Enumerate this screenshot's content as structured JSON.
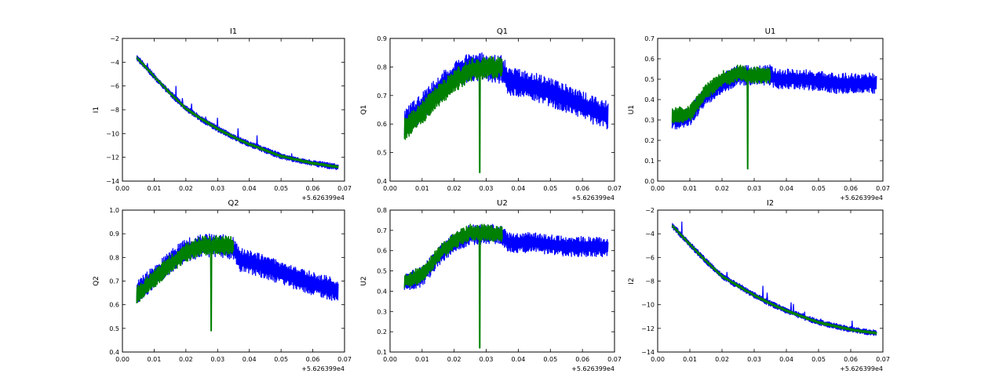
{
  "figure": {
    "background": "#ffffff",
    "series_colors": [
      "#0000ff",
      "#008000"
    ],
    "offset_label": "+5.626399e4"
  },
  "chart_data": [
    {
      "type": "line",
      "title": "I1",
      "ylabel": "I1",
      "xlabel": "",
      "xlim": [
        0.0,
        0.07
      ],
      "ylim": [
        -14,
        -2
      ],
      "xticks": [
        "0.00",
        "0.01",
        "0.02",
        "0.03",
        "0.04",
        "0.05",
        "0.06",
        "0.07"
      ],
      "yticks": [
        "−14",
        "−12",
        "−10",
        "−8",
        "−6",
        "−4",
        "−2"
      ],
      "series": [
        {
          "color": "#0000ff",
          "x": [
            0.0045,
            0.01,
            0.015,
            0.02,
            0.025,
            0.03,
            0.035,
            0.04,
            0.045,
            0.05,
            0.055,
            0.06,
            0.065,
            0.068
          ],
          "y": [
            -3.6,
            -5.2,
            -6.6,
            -7.9,
            -8.8,
            -9.6,
            -10.3,
            -10.9,
            -11.4,
            -11.9,
            -12.2,
            -12.5,
            -12.7,
            -12.8
          ],
          "noise": 0.25,
          "spikes": 1.2
        },
        {
          "color": "#008000",
          "x": [
            0.0045,
            0.01,
            0.015,
            0.02,
            0.025,
            0.03,
            0.035,
            0.04,
            0.045,
            0.05,
            0.055,
            0.06,
            0.065,
            0.068
          ],
          "y": [
            -3.6,
            -5.2,
            -6.6,
            -7.9,
            -8.8,
            -9.6,
            -10.3,
            -10.9,
            -11.4,
            -11.9,
            -12.2,
            -12.5,
            -12.7,
            -12.8
          ],
          "noise": 0.1,
          "spikes": 0
        }
      ]
    },
    {
      "type": "line",
      "title": "Q1",
      "ylabel": "Q1",
      "xlabel": "",
      "xlim": [
        0.0,
        0.07
      ],
      "ylim": [
        0.4,
        0.9
      ],
      "xticks": [
        "0.00",
        "0.01",
        "0.02",
        "0.03",
        "0.04",
        "0.05",
        "0.06",
        "0.07"
      ],
      "yticks": [
        "0.4",
        "0.5",
        "0.6",
        "0.7",
        "0.8",
        "0.9"
      ],
      "series": [
        {
          "color": "#0000ff",
          "x": [
            0.0045,
            0.01,
            0.015,
            0.02,
            0.025,
            0.03,
            0.035,
            0.037,
            0.045,
            0.055,
            0.065,
            0.068
          ],
          "y": [
            0.6,
            0.66,
            0.72,
            0.77,
            0.8,
            0.8,
            0.79,
            0.75,
            0.73,
            0.69,
            0.64,
            0.63
          ],
          "noise": 0.05,
          "spikes": 0
        },
        {
          "color": "#008000",
          "x": [
            0.0045,
            0.01,
            0.015,
            0.02,
            0.025,
            0.03,
            0.035
          ],
          "y": [
            0.58,
            0.64,
            0.7,
            0.75,
            0.79,
            0.8,
            0.8
          ],
          "noise": 0.04,
          "dip": {
            "x": 0.028,
            "y": 0.43
          }
        }
      ]
    },
    {
      "type": "line",
      "title": "U1",
      "ylabel": "U1",
      "xlabel": "",
      "xlim": [
        0.0,
        0.07
      ],
      "ylim": [
        0.0,
        0.7
      ],
      "xticks": [
        "0.00",
        "0.01",
        "0.02",
        "0.03",
        "0.04",
        "0.05",
        "0.06",
        "0.07"
      ],
      "yticks": [
        "0.0",
        "0.1",
        "0.2",
        "0.3",
        "0.4",
        "0.5",
        "0.6",
        "0.7"
      ],
      "series": [
        {
          "color": "#0000ff",
          "x": [
            0.0045,
            0.01,
            0.015,
            0.02,
            0.025,
            0.03,
            0.035,
            0.037,
            0.045,
            0.055,
            0.065,
            0.068
          ],
          "y": [
            0.3,
            0.32,
            0.42,
            0.48,
            0.52,
            0.52,
            0.52,
            0.5,
            0.5,
            0.48,
            0.48,
            0.48
          ],
          "noise": 0.05,
          "spikes": 0
        },
        {
          "color": "#008000",
          "x": [
            0.0045,
            0.01,
            0.015,
            0.02,
            0.025,
            0.03,
            0.035
          ],
          "y": [
            0.32,
            0.33,
            0.44,
            0.5,
            0.53,
            0.52,
            0.52
          ],
          "noise": 0.04,
          "dip": {
            "x": 0.028,
            "y": 0.06
          }
        }
      ]
    },
    {
      "type": "line",
      "title": "Q2",
      "ylabel": "Q2",
      "xlabel": "",
      "xlim": [
        0.0,
        0.07
      ],
      "ylim": [
        0.4,
        1.0
      ],
      "xticks": [
        "0.00",
        "0.01",
        "0.02",
        "0.03",
        "0.04",
        "0.05",
        "0.06",
        "0.07"
      ],
      "yticks": [
        "0.4",
        "0.5",
        "0.6",
        "0.7",
        "0.8",
        "0.9",
        "1.0"
      ],
      "series": [
        {
          "color": "#0000ff",
          "x": [
            0.0045,
            0.01,
            0.015,
            0.02,
            0.025,
            0.03,
            0.035,
            0.037,
            0.045,
            0.055,
            0.065,
            0.068
          ],
          "y": [
            0.65,
            0.72,
            0.78,
            0.83,
            0.85,
            0.85,
            0.84,
            0.79,
            0.76,
            0.71,
            0.67,
            0.66
          ],
          "noise": 0.05,
          "spikes": 0
        },
        {
          "color": "#008000",
          "x": [
            0.0045,
            0.01,
            0.015,
            0.02,
            0.025,
            0.03,
            0.035
          ],
          "y": [
            0.64,
            0.71,
            0.77,
            0.82,
            0.85,
            0.85,
            0.85
          ],
          "noise": 0.04,
          "dip": {
            "x": 0.028,
            "y": 0.49
          }
        }
      ]
    },
    {
      "type": "line",
      "title": "U2",
      "ylabel": "U2",
      "xlabel": "",
      "xlim": [
        0.0,
        0.07
      ],
      "ylim": [
        0.1,
        0.8
      ],
      "xticks": [
        "0.00",
        "0.01",
        "0.02",
        "0.03",
        "0.04",
        "0.05",
        "0.06",
        "0.07"
      ],
      "yticks": [
        "0.1",
        "0.2",
        "0.3",
        "0.4",
        "0.5",
        "0.6",
        "0.7",
        "0.8"
      ],
      "series": [
        {
          "color": "#0000ff",
          "x": [
            0.0045,
            0.01,
            0.015,
            0.02,
            0.025,
            0.03,
            0.035,
            0.037,
            0.045,
            0.055,
            0.065,
            0.068
          ],
          "y": [
            0.45,
            0.47,
            0.57,
            0.64,
            0.68,
            0.68,
            0.68,
            0.64,
            0.64,
            0.62,
            0.62,
            0.62
          ],
          "noise": 0.05,
          "spikes": 0
        },
        {
          "color": "#008000",
          "x": [
            0.0045,
            0.01,
            0.015,
            0.02,
            0.025,
            0.03,
            0.035
          ],
          "y": [
            0.45,
            0.48,
            0.58,
            0.65,
            0.69,
            0.69,
            0.68
          ],
          "noise": 0.04,
          "dip": {
            "x": 0.028,
            "y": 0.12
          }
        }
      ]
    },
    {
      "type": "line",
      "title": "I2",
      "ylabel": "I2",
      "xlabel": "",
      "xlim": [
        0.0,
        0.07
      ],
      "ylim": [
        -14,
        -2
      ],
      "xticks": [
        "0.00",
        "0.01",
        "0.02",
        "0.03",
        "0.04",
        "0.05",
        "0.06",
        "0.07"
      ],
      "yticks": [
        "−14",
        "−12",
        "−10",
        "−8",
        "−6",
        "−4",
        "−2"
      ],
      "series": [
        {
          "color": "#0000ff",
          "x": [
            0.0045,
            0.01,
            0.015,
            0.02,
            0.025,
            0.03,
            0.035,
            0.04,
            0.045,
            0.05,
            0.055,
            0.06,
            0.065,
            0.068
          ],
          "y": [
            -3.3,
            -4.9,
            -6.3,
            -7.6,
            -8.4,
            -9.2,
            -9.9,
            -10.5,
            -11.0,
            -11.5,
            -11.8,
            -12.1,
            -12.3,
            -12.4
          ],
          "noise": 0.25,
          "spikes": 1.2
        },
        {
          "color": "#008000",
          "x": [
            0.0045,
            0.01,
            0.015,
            0.02,
            0.025,
            0.03,
            0.035,
            0.04,
            0.045,
            0.05,
            0.055,
            0.06,
            0.065,
            0.068
          ],
          "y": [
            -3.3,
            -4.9,
            -6.3,
            -7.6,
            -8.4,
            -9.2,
            -9.9,
            -10.5,
            -11.0,
            -11.5,
            -11.8,
            -12.1,
            -12.3,
            -12.4
          ],
          "noise": 0.1,
          "spikes": 0
        }
      ]
    }
  ]
}
